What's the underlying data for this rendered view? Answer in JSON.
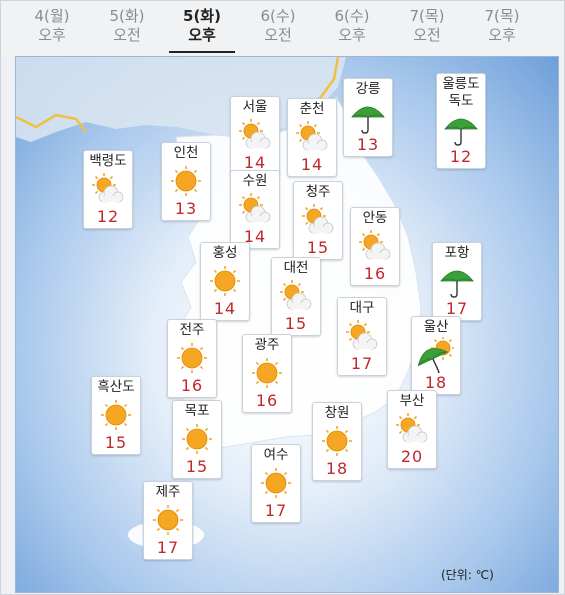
{
  "tabs": [
    {
      "day": "4(월)",
      "period": "오후",
      "active": false
    },
    {
      "day": "5(화)",
      "period": "오전",
      "active": false
    },
    {
      "day": "5(화)",
      "period": "오후",
      "active": true
    },
    {
      "day": "6(수)",
      "period": "오전",
      "active": false
    },
    {
      "day": "6(수)",
      "period": "오후",
      "active": false
    },
    {
      "day": "7(목)",
      "period": "오전",
      "active": false
    },
    {
      "day": "7(목)",
      "period": "오후",
      "active": false
    }
  ],
  "cities": [
    {
      "name": "서울",
      "icon": "partly-cloudy-icon",
      "temp": "14"
    },
    {
      "name": "춘천",
      "icon": "partly-cloudy-icon",
      "temp": "14"
    },
    {
      "name": "강릉",
      "icon": "umbrella-icon",
      "temp": "13"
    },
    {
      "name": "울릉도\n독도",
      "icon": "umbrella-icon",
      "temp": "12"
    },
    {
      "name": "백령도",
      "icon": "partly-cloudy-icon",
      "temp": "12"
    },
    {
      "name": "인천",
      "icon": "sunny-icon",
      "temp": "13"
    },
    {
      "name": "수원",
      "icon": "partly-cloudy-icon",
      "temp": "14"
    },
    {
      "name": "청주",
      "icon": "partly-cloudy-icon",
      "temp": "15"
    },
    {
      "name": "안동",
      "icon": "partly-cloudy-icon",
      "temp": "16"
    },
    {
      "name": "홍성",
      "icon": "sunny-icon",
      "temp": "14"
    },
    {
      "name": "대전",
      "icon": "partly-cloudy-icon",
      "temp": "15"
    },
    {
      "name": "포항",
      "icon": "umbrella-icon",
      "temp": "17"
    },
    {
      "name": "대구",
      "icon": "partly-cloudy-icon",
      "temp": "17"
    },
    {
      "name": "전주",
      "icon": "sunny-icon",
      "temp": "16"
    },
    {
      "name": "광주",
      "icon": "sunny-icon",
      "temp": "16"
    },
    {
      "name": "울산",
      "icon": "umbrella-sun-icon",
      "temp": "18"
    },
    {
      "name": "흑산도",
      "icon": "sunny-icon",
      "temp": "15"
    },
    {
      "name": "목포",
      "icon": "sunny-icon",
      "temp": "15"
    },
    {
      "name": "창원",
      "icon": "sunny-icon",
      "temp": "18"
    },
    {
      "name": "부산",
      "icon": "partly-cloudy-icon",
      "temp": "20"
    },
    {
      "name": "여수",
      "icon": "sunny-icon",
      "temp": "17"
    },
    {
      "name": "제주",
      "icon": "sunny-icon",
      "temp": "17"
    }
  ],
  "unit_label": "(단위: ℃)",
  "colors": {
    "temp": "#c0282d",
    "sun": "#f5a623",
    "umbrella": "#3aa13a",
    "sea": "#6d9fd9",
    "coast": "#f0c040"
  }
}
